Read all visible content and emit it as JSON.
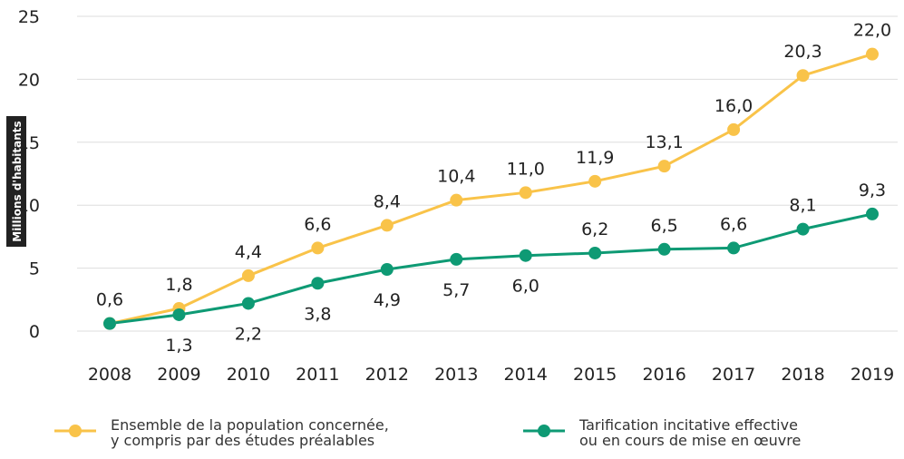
{
  "chart_data": {
    "type": "line",
    "y_label": "Millions d'habitants",
    "x": [
      2008,
      2009,
      2010,
      2011,
      2012,
      2013,
      2014,
      2015,
      2016,
      2017,
      2018,
      2019
    ],
    "series": [
      {
        "name": "Ensemble de la population concernée,\ny compris par des études préalables",
        "color": "#f9c349",
        "values": [
          0.6,
          1.8,
          4.4,
          6.6,
          8.4,
          10.4,
          11.0,
          11.9,
          13.1,
          16.0,
          20.3,
          22.0
        ],
        "value_labels": [
          "0,6",
          "1,8",
          "4,4",
          "6,6",
          "8,4",
          "10,4",
          "11,0",
          "11,9",
          "13,1",
          "16,0",
          "20,3",
          "22,0"
        ]
      },
      {
        "name": "Tarification incitative effective\nou en cours de mise en œuvre",
        "color": "#0e9a74",
        "values": [
          0.6,
          1.3,
          2.2,
          3.8,
          4.9,
          5.7,
          6.0,
          6.2,
          6.5,
          6.6,
          8.1,
          9.3
        ],
        "value_labels": [
          null,
          "1,3",
          "2,2",
          "3,8",
          "4,9",
          "5,7",
          "6,0",
          "6,2",
          "6,5",
          "6,6",
          "8,1",
          "9,3"
        ]
      }
    ],
    "ylim": [
      0,
      25
    ],
    "yticks": [
      0,
      5,
      10,
      15,
      20,
      25
    ],
    "grid": true
  }
}
